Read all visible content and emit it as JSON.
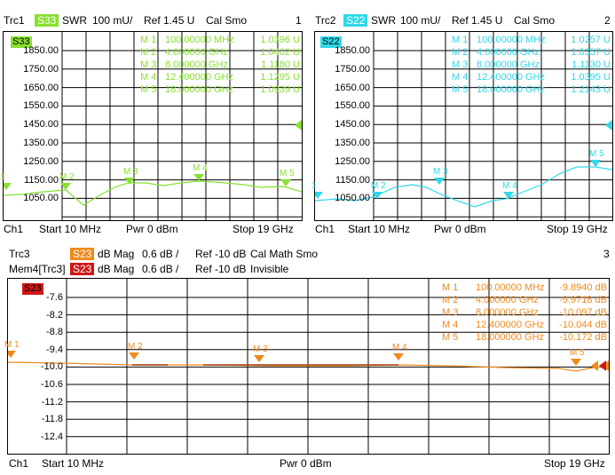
{
  "panels": [
    {
      "trace": "Trc1",
      "param": "S33",
      "format": "SWR",
      "scale": "100 mU/",
      "ref": "Ref 1.45 U",
      "cal": "Cal Smo",
      "number": "1",
      "color": "#88e030",
      "badge": "S33",
      "yticks": [
        "1850.00",
        "1750.00",
        "1650.00",
        "1550.00",
        "1450.00",
        "1350.00",
        "1250.00",
        "1150.00",
        "1050.00"
      ],
      "markers": [
        {
          "name": "M 1",
          "x": "100.00000 MHz",
          "y": "1.0396 U"
        },
        {
          "name": "M 2",
          "x": "4.000000 GHz",
          "y": "1.0402 U"
        },
        {
          "name": "M 3",
          "x": "8.000000 GHz",
          "y": "1.1180 U"
        },
        {
          "name": "M 4",
          "x": "12.400000 GHz",
          "y": "1.1295 U"
        },
        {
          "name": "M 5",
          "x": "18.000000 GHz",
          "y": "1.0939 U"
        }
      ],
      "plot_markers": [
        "1",
        "M 2",
        "M 3",
        "M 4",
        "M 5"
      ],
      "footer": {
        "ch": "Ch1",
        "start": "Start  10 MHz",
        "pwr": "Pwr  0 dBm",
        "stop": "Stop  19 GHz"
      }
    },
    {
      "trace": "Trc2",
      "param": "S22",
      "format": "SWR",
      "scale": "100 mU/",
      "ref": "Ref 1.45 U",
      "cal": "Cal Smo",
      "number": "2",
      "color": "#30d8e8",
      "badge": "S22",
      "yticks": [
        "1850.00",
        "1750.00",
        "1650.00",
        "1550.00",
        "1450.00",
        "1350.00",
        "1250.00",
        "1150.00",
        "1050.00"
      ],
      "markers": [
        {
          "name": "M 1",
          "x": "100.00000 MHz",
          "y": "1.0257 U"
        },
        {
          "name": "M 2",
          "x": "4.000000 GHz",
          "y": "1.0357 U"
        },
        {
          "name": "M 3",
          "x": "8.000000 GHz",
          "y": "1.1130 U"
        },
        {
          "name": "M 4",
          "x": "12.400000 GHz",
          "y": "1.0395 U"
        },
        {
          "name": "M 5",
          "x": "18.000000 GHz",
          "y": "1.2143 U"
        }
      ],
      "plot_markers": [
        "1",
        "M 2",
        "M 3",
        "M 4",
        "M 5"
      ],
      "footer": {
        "ch": "Ch1",
        "start": "Start  10 MHz",
        "pwr": "Pwr  0 dBm",
        "stop": "Stop  19 GHz"
      }
    }
  ],
  "bottom": {
    "line1": {
      "trace": "Trc3",
      "param": "S23",
      "format": "dB Mag",
      "scale": "0.6 dB /",
      "ref": "Ref -10 dB",
      "cal": "Cal Math Smo",
      "number": "3"
    },
    "line2": {
      "trace": "Mem4[Trc3]",
      "param": "S23",
      "format": "dB Mag",
      "scale": "0.6 dB /",
      "ref": "Ref -10 dB",
      "state": "Invisible"
    },
    "color": "#f08a1c",
    "mem_color": "#d01818",
    "badge": "S23",
    "yticks": [
      "-7.6",
      "-8.2",
      "-8.8",
      "-9.4",
      "-10.0",
      "-10.6",
      "-11.2",
      "-11.8",
      "-12.4"
    ],
    "markers": [
      {
        "name": "M 1",
        "x": "100.00000 MHz",
        "y": "-9.8940 dB"
      },
      {
        "name": "M 2",
        "x": "4.000000 GHz",
        "y": "-9.9718 dB"
      },
      {
        "name": "M 3",
        "x": "8.000000 GHz",
        "y": "-10.097 dB"
      },
      {
        "name": "M 4",
        "x": "12.400000 GHz",
        "y": "-10.044 dB"
      },
      {
        "name": "M 5",
        "x": "18.000000 GHz",
        "y": "-10.172 dB"
      }
    ],
    "plot_markers": [
      "M 1",
      "M 2",
      "M 3",
      "M 4",
      "M 5"
    ],
    "footer": {
      "ch": "Ch1",
      "start": "Start  10 MHz",
      "pwr": "Pwr  0 dBm",
      "stop": "Stop  19 GHz"
    }
  }
}
